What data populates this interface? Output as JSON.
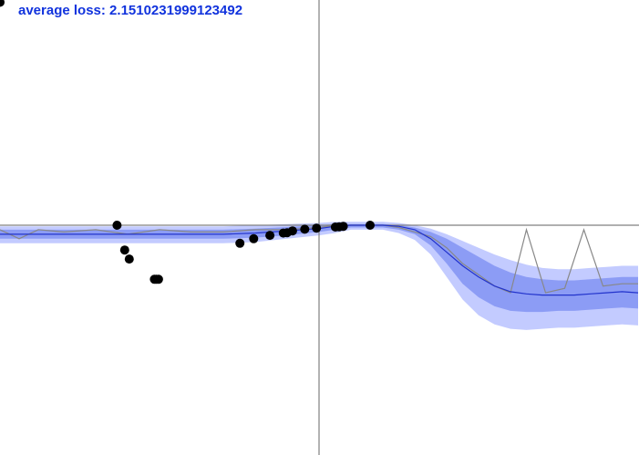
{
  "header": {
    "average_loss_label": "average loss: 2.1510231999123492"
  },
  "colors": {
    "label": "#1133dd",
    "axes": "#808080",
    "band_outer": "#c3cbff",
    "band_inner": "#8c9cf5",
    "mean_line": "#2233cc",
    "sample_line": "#888888",
    "points": "#000000"
  },
  "chart_data": {
    "type": "line",
    "title": "",
    "xlabel": "",
    "ylabel": "",
    "xlim": [
      -1,
      1
    ],
    "ylim": [
      -1,
      1
    ],
    "grid": false,
    "legend": "none",
    "points": [
      {
        "x": -1.0,
        "y": 0.99
      },
      {
        "x": -0.633,
        "y": 0.0
      },
      {
        "x": -0.609,
        "y": -0.11
      },
      {
        "x": -0.595,
        "y": -0.15
      },
      {
        "x": -0.516,
        "y": -0.24
      },
      {
        "x": -0.51,
        "y": -0.24
      },
      {
        "x": -0.503,
        "y": -0.24
      },
      {
        "x": -0.248,
        "y": -0.08
      },
      {
        "x": -0.205,
        "y": -0.06
      },
      {
        "x": -0.154,
        "y": -0.045
      },
      {
        "x": -0.112,
        "y": -0.035
      },
      {
        "x": -0.1,
        "y": -0.033
      },
      {
        "x": -0.083,
        "y": -0.025
      },
      {
        "x": -0.045,
        "y": -0.018
      },
      {
        "x": -0.008,
        "y": -0.013
      },
      {
        "x": 0.051,
        "y": -0.008
      },
      {
        "x": 0.063,
        "y": -0.007
      },
      {
        "x": 0.076,
        "y": -0.005
      },
      {
        "x": 0.16,
        "y": 0.0
      }
    ],
    "mean_curve": {
      "x": [
        -1.0,
        -0.9,
        -0.8,
        -0.7,
        -0.6,
        -0.5,
        -0.4,
        -0.3,
        -0.2,
        -0.1,
        0.0,
        0.05,
        0.1,
        0.2,
        0.25,
        0.3,
        0.35,
        0.4,
        0.45,
        0.5,
        0.55,
        0.6,
        0.65,
        0.7,
        0.75,
        0.8,
        0.85,
        0.9,
        0.95,
        1.0
      ],
      "y": [
        -0.04,
        -0.04,
        -0.04,
        -0.04,
        -0.04,
        -0.04,
        -0.04,
        -0.04,
        -0.035,
        -0.025,
        -0.015,
        -0.005,
        0.0,
        0.0,
        -0.005,
        -0.02,
        -0.06,
        -0.12,
        -0.18,
        -0.23,
        -0.27,
        -0.295,
        -0.305,
        -0.31,
        -0.31,
        -0.31,
        -0.305,
        -0.3,
        -0.295,
        -0.3
      ]
    },
    "inner_band": {
      "upper": [
        -0.02,
        -0.02,
        -0.02,
        -0.02,
        -0.02,
        -0.02,
        -0.02,
        -0.02,
        -0.015,
        -0.008,
        0.0,
        0.005,
        0.005,
        0.005,
        0.0,
        -0.01,
        -0.03,
        -0.06,
        -0.1,
        -0.14,
        -0.18,
        -0.21,
        -0.23,
        -0.24,
        -0.245,
        -0.245,
        -0.24,
        -0.235,
        -0.23,
        -0.23
      ],
      "lower": [
        -0.06,
        -0.06,
        -0.06,
        -0.06,
        -0.06,
        -0.06,
        -0.06,
        -0.06,
        -0.055,
        -0.045,
        -0.03,
        -0.02,
        -0.01,
        -0.01,
        -0.02,
        -0.04,
        -0.09,
        -0.17,
        -0.26,
        -0.32,
        -0.36,
        -0.38,
        -0.385,
        -0.385,
        -0.38,
        -0.38,
        -0.375,
        -0.37,
        -0.365,
        -0.37
      ]
    },
    "outer_band": {
      "upper": [
        -0.005,
        -0.005,
        -0.005,
        -0.005,
        -0.005,
        -0.005,
        -0.005,
        -0.005,
        0.0,
        0.005,
        0.01,
        0.015,
        0.015,
        0.015,
        0.01,
        0.0,
        -0.015,
        -0.04,
        -0.07,
        -0.1,
        -0.13,
        -0.155,
        -0.175,
        -0.19,
        -0.195,
        -0.195,
        -0.19,
        -0.185,
        -0.18,
        -0.18
      ],
      "lower": [
        -0.08,
        -0.08,
        -0.08,
        -0.08,
        -0.08,
        -0.08,
        -0.08,
        -0.08,
        -0.075,
        -0.06,
        -0.045,
        -0.035,
        -0.02,
        -0.02,
        -0.035,
        -0.065,
        -0.13,
        -0.23,
        -0.33,
        -0.4,
        -0.44,
        -0.46,
        -0.465,
        -0.46,
        -0.455,
        -0.455,
        -0.45,
        -0.445,
        -0.44,
        -0.445
      ]
    },
    "sample_curve": {
      "x": [
        -1.0,
        -0.94,
        -0.88,
        -0.8,
        -0.7,
        -0.6,
        -0.5,
        -0.4,
        -0.3,
        -0.2,
        -0.1,
        0.0,
        0.05,
        0.1,
        0.2,
        0.25,
        0.3,
        0.35,
        0.4,
        0.45,
        0.5,
        0.55,
        0.6,
        0.65,
        0.71,
        0.77,
        0.83,
        0.89,
        0.95,
        1.0
      ],
      "y": [
        -0.02,
        -0.06,
        -0.02,
        -0.03,
        -0.02,
        -0.04,
        -0.02,
        -0.03,
        -0.03,
        -0.02,
        -0.02,
        -0.01,
        0.0,
        0.0,
        0.0,
        -0.01,
        -0.03,
        -0.05,
        -0.1,
        -0.17,
        -0.22,
        -0.27,
        -0.3,
        -0.02,
        -0.3,
        -0.28,
        -0.02,
        -0.27,
        -0.26,
        -0.26
      ]
    }
  }
}
